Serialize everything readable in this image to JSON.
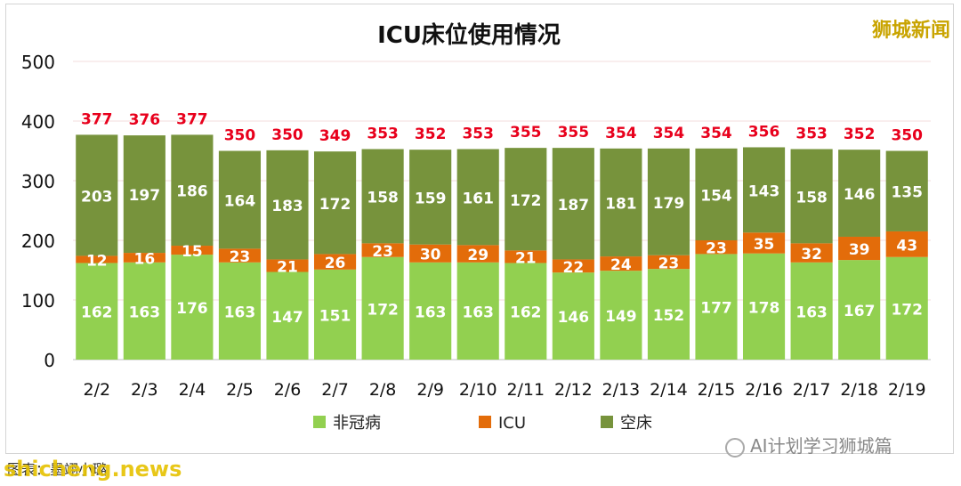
{
  "branding": {
    "source_mark": "狮城新闻"
  },
  "footer": {
    "note": "图表：墨翊小璐",
    "watermark_left": "shicheng.news",
    "watermark_right": "AI计划学习狮城篇"
  },
  "chart_data": {
    "type": "bar",
    "stacked": true,
    "title": "ICU床位使用情况",
    "xlabel": "",
    "ylabel": "",
    "ylim": [
      0,
      500
    ],
    "yticks": [
      0,
      100,
      200,
      300,
      400,
      500
    ],
    "categories": [
      "2/2",
      "2/3",
      "2/4",
      "2/5",
      "2/6",
      "2/7",
      "2/8",
      "2/9",
      "2/10",
      "2/11",
      "2/12",
      "2/13",
      "2/14",
      "2/15",
      "2/16",
      "2/17",
      "2/18",
      "2/19"
    ],
    "series": [
      {
        "name": "非冠病",
        "color": "#92d050",
        "values": [
          162,
          163,
          176,
          163,
          147,
          151,
          172,
          163,
          163,
          162,
          146,
          149,
          152,
          177,
          178,
          163,
          167,
          172
        ]
      },
      {
        "name": "ICU",
        "color": "#e36c0a",
        "values": [
          12,
          16,
          15,
          23,
          21,
          26,
          23,
          30,
          29,
          21,
          22,
          24,
          23,
          23,
          35,
          32,
          39,
          43
        ]
      },
      {
        "name": "空床",
        "color": "#77933c",
        "values": [
          203,
          197,
          186,
          164,
          183,
          172,
          158,
          159,
          161,
          172,
          187,
          181,
          179,
          154,
          143,
          158,
          146,
          135
        ]
      }
    ],
    "totals": [
      377,
      376,
      377,
      350,
      350,
      349,
      353,
      352,
      353,
      355,
      355,
      354,
      354,
      354,
      356,
      353,
      352,
      350
    ],
    "totals_color": "#e8001c",
    "legend_position": "bottom",
    "grid": true
  }
}
